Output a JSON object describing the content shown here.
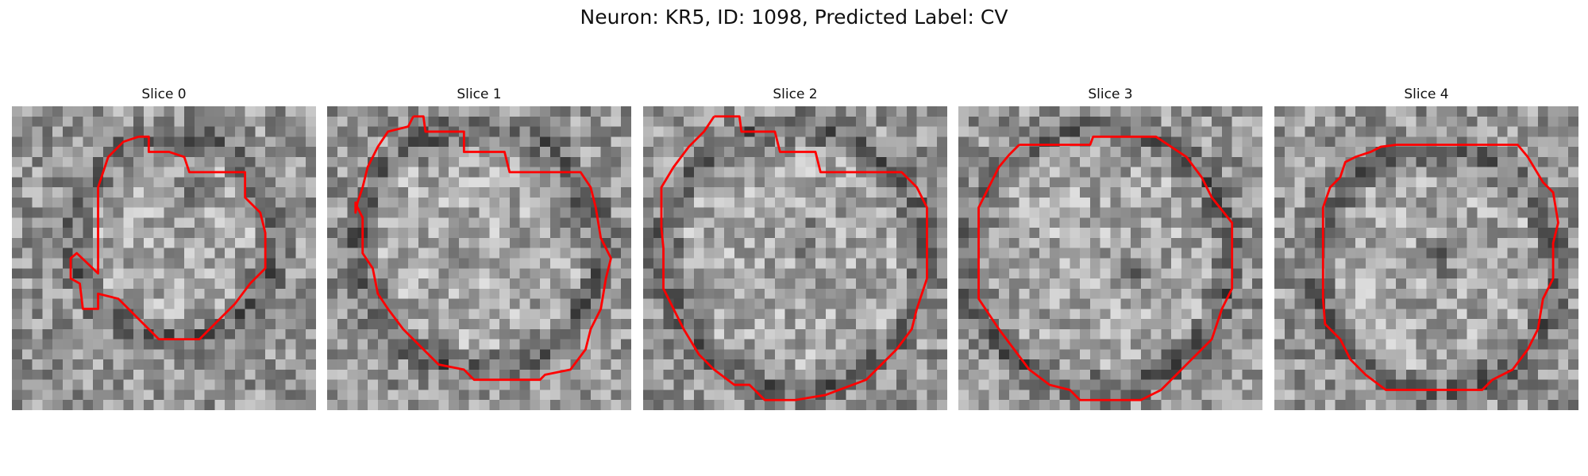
{
  "figure": {
    "title": "Neuron: KR5, ID: 1098, Predicted Label: CV"
  },
  "panels": [
    {
      "title": "Slice 0"
    },
    {
      "title": "Slice 1"
    },
    {
      "title": "Slice 2"
    },
    {
      "title": "Slice 3"
    },
    {
      "title": "Slice 4"
    }
  ],
  "colors": {
    "contour": "#ff0000",
    "background": "#ffffff"
  },
  "image": {
    "colormap": "gray",
    "grid_cells": 30
  }
}
